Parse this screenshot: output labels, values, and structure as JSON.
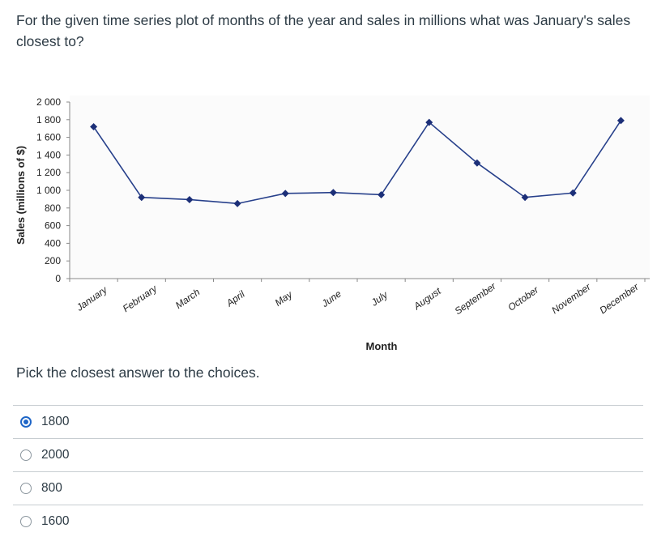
{
  "question": {
    "text": "For the given time series plot of months of the year and sales in millions what was January's sales closest to?"
  },
  "prompt": "Pick the closest answer to the choices.",
  "answers": [
    {
      "label": "1800",
      "selected": true
    },
    {
      "label": "2000",
      "selected": false
    },
    {
      "label": "800",
      "selected": false
    },
    {
      "label": "1600",
      "selected": false
    }
  ],
  "chart_data": {
    "type": "line",
    "categories": [
      "January",
      "February",
      "March",
      "April",
      "May",
      "June",
      "July",
      "August",
      "September",
      "October",
      "November",
      "December"
    ],
    "series": [
      {
        "values": [
          1720,
          920,
          895,
          850,
          965,
          975,
          950,
          1770,
          1310,
          920,
          970,
          1790
        ]
      }
    ],
    "xlabel": "Month",
    "ylabel": "Sales (millions of $)",
    "ylim": [
      0,
      2000
    ],
    "yticks": [
      0,
      200,
      400,
      600,
      800,
      1000,
      1200,
      1400,
      1600,
      1800,
      2000
    ],
    "ytick_labels": [
      "0",
      "200",
      "400",
      "600",
      "800",
      "1 000",
      "1 200",
      "1 400",
      "1 600",
      "1 800",
      "2 000"
    ],
    "grid": false,
    "legend": "none",
    "colors": {
      "line": "#27408b",
      "marker": "#1c2f78",
      "axis": "#888888",
      "plot_bg": "#fbfbfb"
    }
  }
}
